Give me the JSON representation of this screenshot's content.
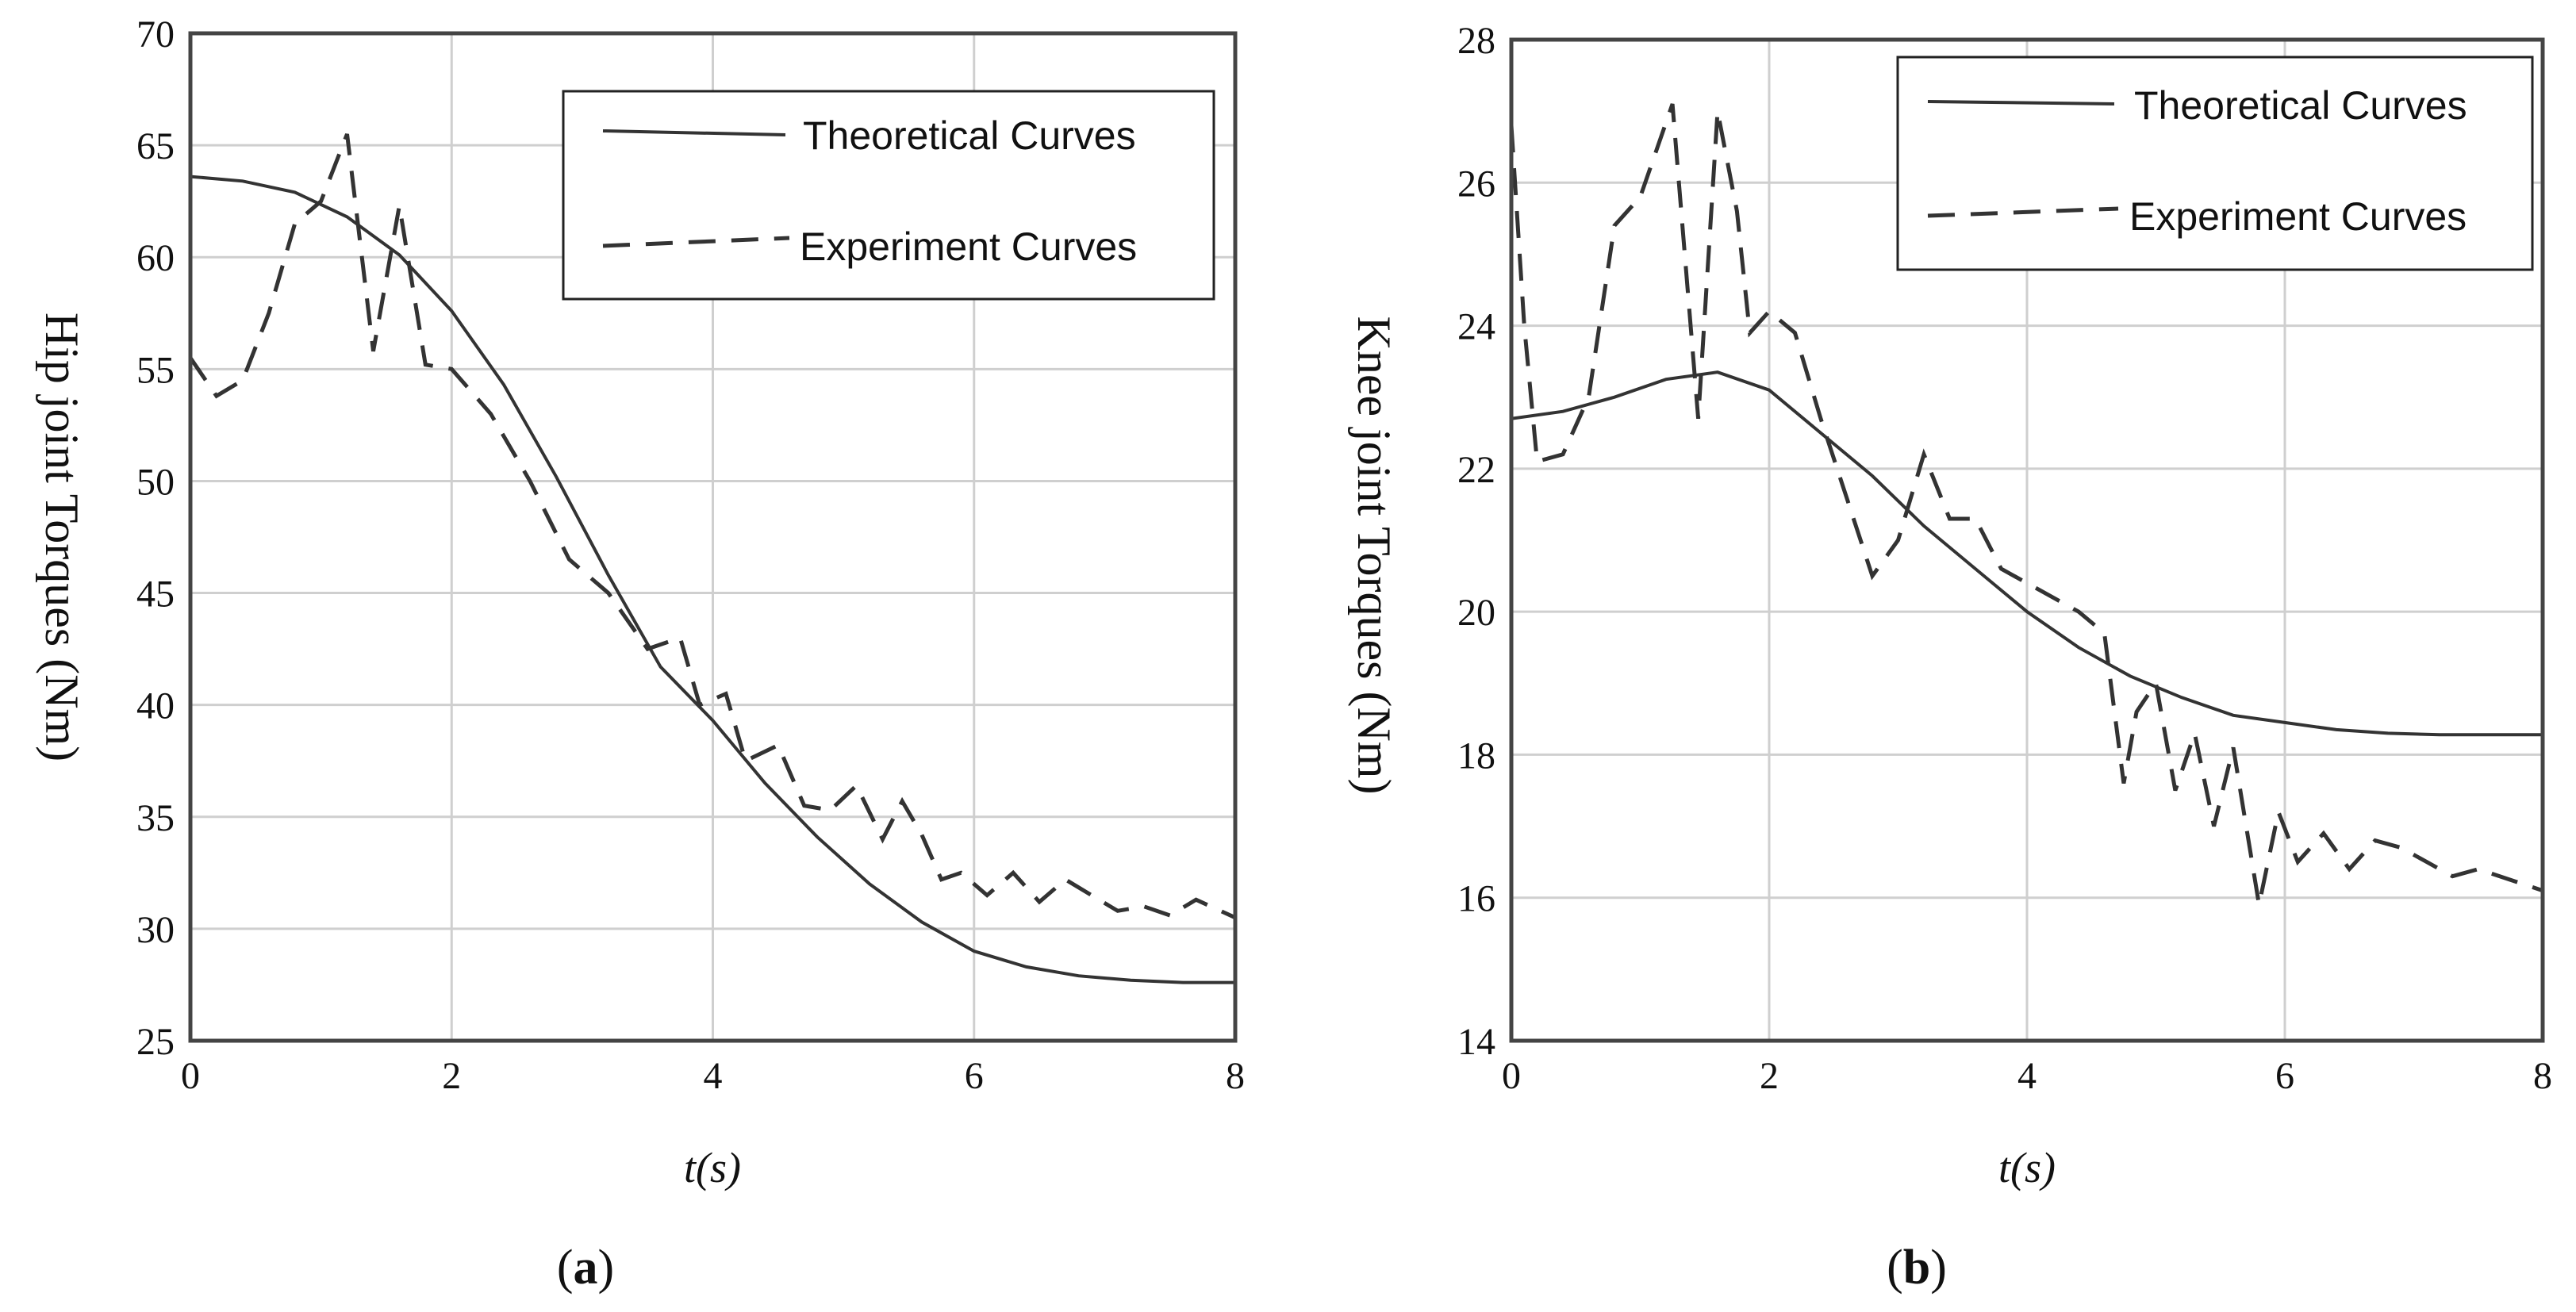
{
  "chart_data": [
    {
      "type": "line",
      "panel": "a",
      "caption": "(a)",
      "ylabel": "Hip joint Torques (Nm)",
      "xlabel": "t(s)",
      "xlim": [
        0,
        8
      ],
      "ylim": [
        25,
        70
      ],
      "xticks": [
        0,
        2,
        4,
        6,
        8
      ],
      "yticks": [
        25,
        30,
        35,
        40,
        45,
        50,
        55,
        60,
        65,
        70
      ],
      "grid": true,
      "legend_position": "top-right",
      "series": [
        {
          "name": "Theoretical Curves",
          "style": "solid",
          "x": [
            0,
            0.4,
            0.8,
            1.2,
            1.6,
            2.0,
            2.4,
            2.8,
            3.2,
            3.6,
            4.0,
            4.4,
            4.8,
            5.2,
            5.6,
            6.0,
            6.4,
            6.8,
            7.2,
            7.6,
            8.0
          ],
          "y": [
            63.6,
            63.4,
            62.9,
            61.8,
            60.1,
            57.6,
            54.3,
            50.2,
            45.8,
            41.7,
            39.3,
            36.5,
            34.1,
            32.0,
            30.3,
            29.0,
            28.3,
            27.9,
            27.7,
            27.6,
            27.6
          ]
        },
        {
          "name": "Experiment Curves",
          "style": "dashed",
          "x": [
            0,
            0.2,
            0.4,
            0.6,
            0.8,
            1.0,
            1.2,
            1.4,
            1.6,
            1.8,
            2.0,
            2.3,
            2.6,
            2.9,
            3.2,
            3.5,
            3.75,
            3.9,
            4.1,
            4.25,
            4.5,
            4.7,
            4.9,
            5.1,
            5.3,
            5.45,
            5.6,
            5.75,
            5.9,
            6.1,
            6.3,
            6.5,
            6.7,
            6.9,
            7.1,
            7.3,
            7.5,
            7.7,
            8.0
          ],
          "y": [
            55.5,
            53.8,
            54.5,
            57.5,
            61.5,
            62.5,
            65.5,
            55.8,
            62.3,
            55.2,
            55.0,
            53.0,
            50.0,
            46.5,
            45.0,
            42.5,
            43.0,
            40.0,
            40.5,
            37.5,
            38.2,
            35.5,
            35.3,
            36.4,
            34.0,
            35.7,
            34.2,
            32.2,
            32.5,
            31.5,
            32.5,
            31.2,
            32.2,
            31.5,
            30.8,
            31.0,
            30.6,
            31.3,
            30.5
          ]
        }
      ]
    },
    {
      "type": "line",
      "panel": "b",
      "caption": "(b)",
      "ylabel": "Knee joint Torques (Nm)",
      "xlabel": "t(s)",
      "xlim": [
        0,
        8
      ],
      "ylim": [
        14,
        28
      ],
      "xticks": [
        0,
        2,
        4,
        6,
        8
      ],
      "yticks": [
        14,
        16,
        18,
        20,
        22,
        24,
        26,
        28
      ],
      "grid": true,
      "legend_position": "top-right",
      "series": [
        {
          "name": "Theoretical Curves",
          "style": "solid",
          "x": [
            0,
            0.4,
            0.8,
            1.2,
            1.6,
            2.0,
            2.4,
            2.8,
            3.2,
            3.6,
            4.0,
            4.4,
            4.8,
            5.2,
            5.6,
            6.0,
            6.4,
            6.8,
            7.2,
            7.6,
            8.0
          ],
          "y": [
            22.7,
            22.8,
            23.0,
            23.25,
            23.35,
            23.1,
            22.5,
            21.9,
            21.2,
            20.6,
            20.0,
            19.5,
            19.1,
            18.8,
            18.55,
            18.45,
            18.35,
            18.3,
            18.28,
            18.28,
            18.28
          ]
        },
        {
          "name": "Experiment Curves",
          "style": "dashed",
          "x": [
            0,
            0.1,
            0.2,
            0.4,
            0.6,
            0.8,
            1.0,
            1.25,
            1.45,
            1.6,
            1.75,
            1.85,
            2.0,
            2.2,
            2.4,
            2.6,
            2.8,
            3.0,
            3.2,
            3.4,
            3.6,
            3.8,
            4.0,
            4.2,
            4.4,
            4.6,
            4.75,
            4.85,
            5.0,
            5.15,
            5.3,
            5.45,
            5.6,
            5.8,
            5.95,
            6.1,
            6.3,
            6.5,
            6.7,
            6.9,
            7.1,
            7.3,
            7.5,
            8.0
          ],
          "y": [
            26.8,
            24.0,
            22.1,
            22.2,
            23.0,
            25.4,
            25.8,
            27.1,
            22.7,
            27.0,
            25.6,
            23.9,
            24.2,
            23.9,
            22.7,
            21.6,
            20.5,
            21.0,
            22.2,
            21.3,
            21.3,
            20.6,
            20.4,
            20.2,
            20.0,
            19.7,
            17.6,
            18.6,
            19.0,
            17.5,
            18.3,
            17.0,
            18.1,
            15.9,
            17.2,
            16.5,
            16.9,
            16.4,
            16.8,
            16.7,
            16.5,
            16.3,
            16.4,
            16.1
          ]
        }
      ]
    }
  ]
}
